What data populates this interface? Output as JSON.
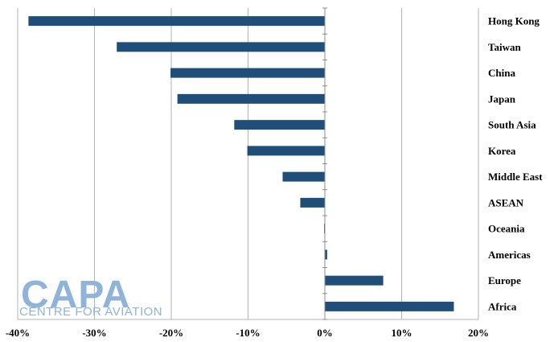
{
  "chart_data": {
    "type": "bar",
    "orientation": "horizontal",
    "categories": [
      "Hong Kong",
      "Taiwan",
      "China",
      "Japan",
      "South Asia",
      "Korea",
      "Middle East",
      "ASEAN",
      "Oceania",
      "Americas",
      "Europe",
      "Africa"
    ],
    "values": [
      -38.6,
      -27.1,
      -20.1,
      -19.2,
      -11.8,
      -10.1,
      -5.5,
      -3.2,
      -0.1,
      0.3,
      7.6,
      16.8
    ],
    "x_ticks": [
      "-40%",
      "-30%",
      "-20%",
      "-10%",
      "0%",
      "10%",
      "20%"
    ],
    "xlim": [
      -40,
      20
    ],
    "grid": "vertical",
    "bar_color": "#1f4e79",
    "watermark": {
      "main": "CAPA",
      "sub": "CENTRE FOR AVIATION"
    }
  }
}
